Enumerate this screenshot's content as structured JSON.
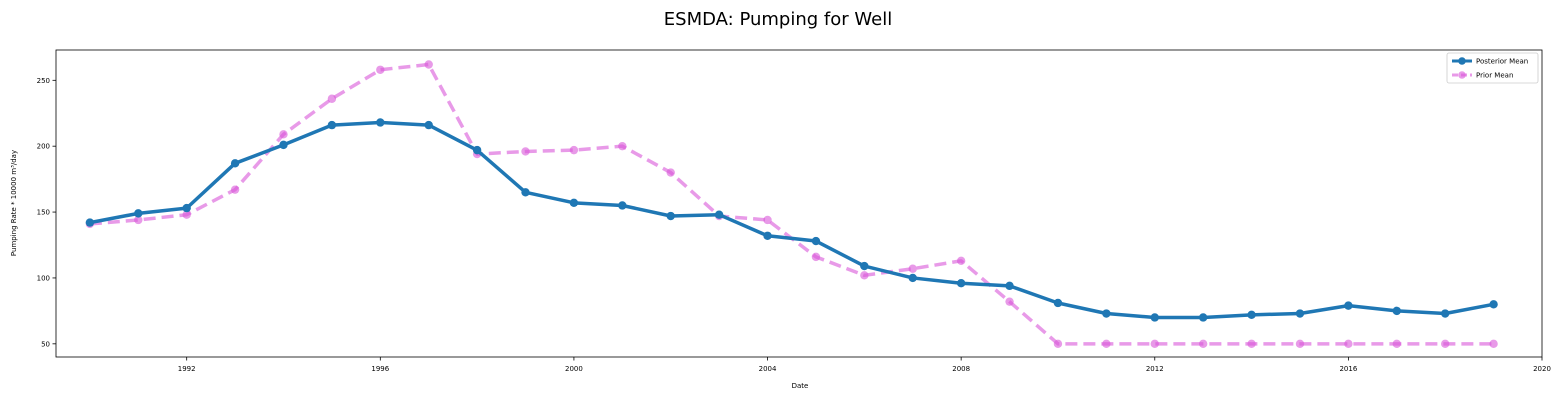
{
  "chart_data": {
    "type": "line",
    "title": "ESMDA: Pumping for Well",
    "xlabel": "Date",
    "ylabel": "Pumping Rate * 10000 m³/day",
    "xlim": [
      1989.3,
      2020.0
    ],
    "ylim": [
      40,
      273
    ],
    "x_ticks": [
      1992,
      1996,
      2000,
      2004,
      2008,
      2012,
      2016,
      2020
    ],
    "y_ticks": [
      50,
      100,
      150,
      200,
      250
    ],
    "legend_position": "top-right",
    "grid": false,
    "x": [
      1990,
      1991,
      1992,
      1993,
      1994,
      1995,
      1996,
      1997,
      1998,
      1999,
      2000,
      2001,
      2002,
      2003,
      2004,
      2005,
      2006,
      2007,
      2008,
      2009,
      2010,
      2011,
      2012,
      2013,
      2014,
      2015,
      2016,
      2017,
      2018,
      2019
    ],
    "series": [
      {
        "name": "Posterior Mean",
        "color": "#1f77b4",
        "style": "solid",
        "values": [
          142,
          149,
          153,
          187,
          201,
          216,
          218,
          216,
          197,
          165,
          157,
          155,
          147,
          148,
          132,
          128,
          109,
          100,
          96,
          94,
          81,
          73,
          70,
          70,
          72,
          73,
          79,
          75,
          73,
          80
        ]
      },
      {
        "name": "Prior Mean",
        "color": "#d957d9",
        "style": "dashed",
        "values": [
          141,
          144,
          148,
          167,
          209,
          236,
          258,
          262,
          194,
          196,
          197,
          200,
          180,
          147,
          144,
          116,
          102,
          107,
          113,
          82,
          50,
          50,
          50,
          50,
          50,
          50,
          50,
          50,
          50,
          50
        ]
      }
    ]
  }
}
